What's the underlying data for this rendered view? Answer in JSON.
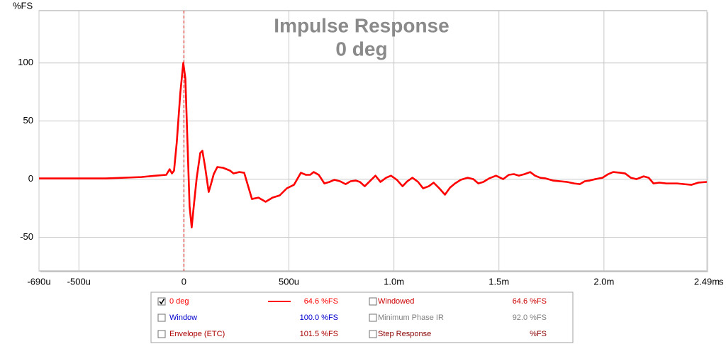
{
  "chart_data": {
    "type": "line",
    "title": "Impulse Response",
    "subtitle": "0 deg",
    "ylabel": "%FS",
    "xlabel": "s",
    "xlim": [
      -0.69,
      2.49
    ],
    "ylim": [
      -79,
      145
    ],
    "xticks": [
      {
        "value": -0.69,
        "label": "-690u"
      },
      {
        "value": -0.5,
        "label": "-500u"
      },
      0,
      {
        "value": 0.5,
        "label": "500u"
      },
      {
        "value": 1.0,
        "label": "1.0m"
      },
      {
        "value": 1.5,
        "label": "1.5m"
      },
      {
        "value": 2.0,
        "label": "2.0m"
      },
      {
        "value": 2.49,
        "label": "2.49m"
      }
    ],
    "yticks": [
      -50,
      0,
      50,
      100
    ],
    "grid": true,
    "cursor": {
      "x": 0,
      "color": "#dd0000"
    },
    "series": [
      {
        "name": "0 deg",
        "color": "#ff0000",
        "checked": true,
        "readout": "64.6 %FS",
        "x": [
          -0.69,
          -0.541,
          -0.372,
          -0.203,
          -0.135,
          -0.084,
          -0.068,
          -0.057,
          -0.047,
          -0.034,
          -0.017,
          -0.003,
          0.007,
          0.017,
          0.027,
          0.037,
          0.047,
          0.061,
          0.078,
          0.088,
          0.101,
          0.118,
          0.128,
          0.142,
          0.159,
          0.186,
          0.22,
          0.236,
          0.264,
          0.287,
          0.304,
          0.324,
          0.355,
          0.389,
          0.422,
          0.456,
          0.49,
          0.524,
          0.557,
          0.581,
          0.601,
          0.618,
          0.642,
          0.669,
          0.693,
          0.716,
          0.743,
          0.77,
          0.794,
          0.818,
          0.838,
          0.861,
          0.885,
          0.912,
          0.936,
          0.963,
          0.986,
          1.014,
          1.041,
          1.064,
          1.088,
          1.115,
          1.139,
          1.166,
          1.189,
          1.216,
          1.243,
          1.267,
          1.291,
          1.318,
          1.351,
          1.378,
          1.402,
          1.426,
          1.453,
          1.486,
          1.52,
          1.547,
          1.571,
          1.595,
          1.622,
          1.649,
          1.672,
          1.696,
          1.723,
          1.757,
          1.791,
          1.824,
          1.858,
          1.885,
          1.909,
          1.932,
          1.959,
          1.993,
          2.02,
          2.044,
          2.078,
          2.101,
          2.128,
          2.155,
          2.189,
          2.213,
          2.236,
          2.264,
          2.297,
          2.348,
          2.382,
          2.416,
          2.449,
          2.49
        ],
        "values": [
          0.6,
          0.6,
          0.6,
          1.8,
          3.0,
          3.7,
          8.5,
          4.9,
          7.3,
          31.7,
          74.4,
          100.0,
          86.6,
          31.7,
          -23.2,
          -41.5,
          -23.2,
          1.2,
          22.6,
          24.4,
          10.4,
          -11.0,
          -4.9,
          4.3,
          10.4,
          9.8,
          7.3,
          4.9,
          6.1,
          5.5,
          -4.9,
          -17.1,
          -15.9,
          -19.5,
          -15.9,
          -14.0,
          -7.9,
          -4.9,
          5.5,
          3.7,
          3.7,
          6.1,
          3.7,
          -3.7,
          -2.4,
          -0.6,
          -1.8,
          -4.3,
          -1.8,
          -1.2,
          -2.4,
          -6.1,
          -1.8,
          3.0,
          -2.4,
          1.2,
          3.0,
          -0.6,
          -6.1,
          -1.8,
          1.2,
          -2.4,
          -7.9,
          -6.1,
          -3.0,
          -7.9,
          -13.4,
          -7.3,
          -3.7,
          -0.6,
          1.2,
          0.0,
          -3.7,
          -2.4,
          0.6,
          3.0,
          0.0,
          3.7,
          4.3,
          3.0,
          4.3,
          6.1,
          3.0,
          1.2,
          0.6,
          -1.2,
          -1.8,
          -2.4,
          -3.7,
          -4.3,
          -1.8,
          -1.2,
          0.0,
          1.2,
          4.3,
          6.1,
          5.5,
          4.9,
          1.2,
          0.0,
          2.4,
          1.2,
          -3.7,
          -3.0,
          -3.7,
          -3.7,
          -4.3,
          -4.9,
          -3.0,
          -2.4
        ]
      }
    ],
    "other_traces": [
      {
        "name": "Windowed",
        "color": "#cc0000",
        "checked": false,
        "readout": "64.6 %FS"
      },
      {
        "name": "Window",
        "color": "#0000cc",
        "checked": false,
        "readout": "100.0 %FS"
      },
      {
        "name": "Minimum Phase IR",
        "color": "#808080",
        "checked": false,
        "readout": "92.0 %FS"
      },
      {
        "name": "Envelope (ETC)",
        "color": "#aa0000",
        "checked": false,
        "readout": "101.5 %FS"
      },
      {
        "name": "Step Response",
        "color": "#880000",
        "checked": false,
        "readout": "%FS"
      }
    ]
  }
}
